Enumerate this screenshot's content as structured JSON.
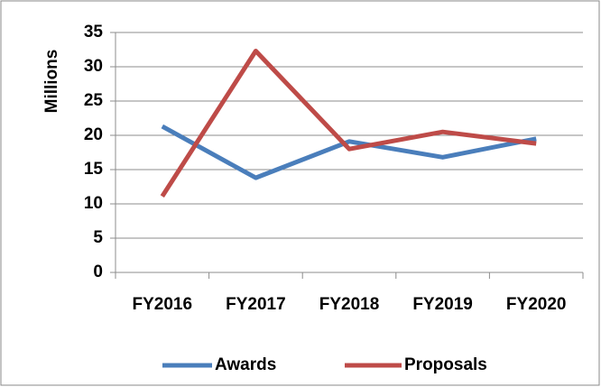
{
  "chart_data": {
    "type": "line",
    "y_label": "Millions",
    "categories": [
      "FY2016",
      "FY2017",
      "FY2018",
      "FY2019",
      "FY2020"
    ],
    "series": [
      {
        "name": "Awards",
        "color": "#4a7ebb",
        "values": [
          21.3,
          13.8,
          19.1,
          16.8,
          19.5
        ]
      },
      {
        "name": "Proposals",
        "color": "#be4b48",
        "values": [
          11.1,
          32.3,
          18.0,
          20.5,
          18.8
        ]
      }
    ],
    "ylim": [
      0,
      35
    ],
    "yticks": [
      0,
      5,
      10,
      15,
      20,
      25,
      30,
      35
    ],
    "grid": true,
    "legend": "bottom"
  }
}
